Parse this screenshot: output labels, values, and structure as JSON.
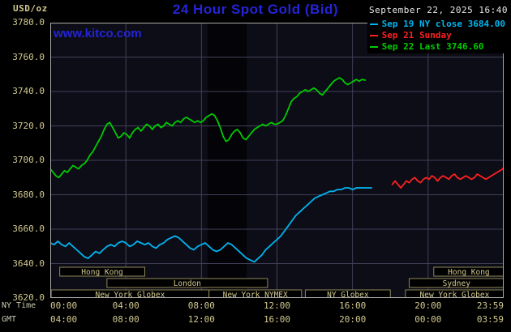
{
  "header": {
    "title": "24 Hour Spot Gold (Bid)",
    "datetime": "September 22, 2025 16:40",
    "unit_label": "USD/oz",
    "watermark": "www.kitco.com"
  },
  "legend": [
    {
      "label": "Sep 19 NY close 3684.00",
      "color": "#00b4f0"
    },
    {
      "label": "Sep 21 Sunday",
      "color": "#ff2020"
    },
    {
      "label": "Sep 22 Last 3746.60",
      "color": "#00cc00"
    }
  ],
  "colors": {
    "title_blue": "#2424d6",
    "axis_tan": "#d2c98f",
    "grid": "#404058",
    "plot_bg": "#0d0d17",
    "band": "#030308",
    "border": "#a8a8a8",
    "session_border": "#8f875a",
    "date_white": "#e6e6e6"
  },
  "axes": {
    "x_left_label": "NY Time",
    "x_left_label2": "GMT",
    "ny_ticks": [
      "00:00",
      "04:00",
      "08:00",
      "12:00",
      "16:00",
      "20:00",
      "23:59"
    ],
    "gmt_ticks": [
      "04:00",
      "08:00",
      "12:00",
      "16:00",
      "20:00",
      "00:00",
      "03:59"
    ],
    "tick_hours": [
      0,
      4,
      8,
      12,
      16,
      20,
      24
    ],
    "y_min": 3620,
    "y_max": 3780,
    "y_step": 20
  },
  "sessions": {
    "rows": [
      {
        "items": [
          {
            "label": "Hong Kong",
            "start": 0.5,
            "end": 5.0
          },
          {
            "label": "Hong Kong",
            "start": 20.3,
            "end": 24.0
          }
        ]
      },
      {
        "items": [
          {
            "label": "London",
            "start": 3.0,
            "end": 11.5
          },
          {
            "label": "Sydney",
            "start": 19.0,
            "end": 24.0
          }
        ]
      },
      {
        "items": [
          {
            "label": "New York Globex",
            "start": 0.05,
            "end": 8.4
          },
          {
            "label": "New York NYMEX",
            "start": 8.4,
            "end": 13.3
          },
          {
            "label": "NY Globex",
            "start": 13.5,
            "end": 18.0
          },
          {
            "label": "New York Globex",
            "start": 18.8,
            "end": 24.0
          }
        ]
      }
    ]
  },
  "chart_data": {
    "type": "line",
    "title": "24 Hour Spot Gold (Bid)",
    "xlabel": "NY Time",
    "ylabel": "USD/oz",
    "ylim": [
      3620,
      3780
    ],
    "xlim_hours": [
      0,
      24
    ],
    "band_hours": [
      8.33,
      10.4
    ],
    "series": [
      {
        "name": "Sep 19 NY close 3684.00",
        "color": "#00b4f0",
        "points": [
          [
            0.0,
            3652
          ],
          [
            0.2,
            3651
          ],
          [
            0.4,
            3653
          ],
          [
            0.6,
            3651
          ],
          [
            0.8,
            3650
          ],
          [
            1.0,
            3652
          ],
          [
            1.2,
            3650
          ],
          [
            1.4,
            3648
          ],
          [
            1.6,
            3646
          ],
          [
            1.8,
            3644
          ],
          [
            2.0,
            3643
          ],
          [
            2.2,
            3645
          ],
          [
            2.4,
            3647
          ],
          [
            2.6,
            3646
          ],
          [
            2.8,
            3648
          ],
          [
            3.0,
            3650
          ],
          [
            3.2,
            3651
          ],
          [
            3.4,
            3650
          ],
          [
            3.6,
            3652
          ],
          [
            3.8,
            3653
          ],
          [
            4.0,
            3652
          ],
          [
            4.2,
            3650
          ],
          [
            4.4,
            3651
          ],
          [
            4.6,
            3653
          ],
          [
            4.8,
            3652
          ],
          [
            5.0,
            3651
          ],
          [
            5.2,
            3652
          ],
          [
            5.4,
            3650
          ],
          [
            5.6,
            3649
          ],
          [
            5.8,
            3651
          ],
          [
            6.0,
            3652
          ],
          [
            6.2,
            3654
          ],
          [
            6.4,
            3655
          ],
          [
            6.6,
            3656
          ],
          [
            6.8,
            3655
          ],
          [
            7.0,
            3653
          ],
          [
            7.2,
            3651
          ],
          [
            7.4,
            3649
          ],
          [
            7.6,
            3648
          ],
          [
            7.8,
            3650
          ],
          [
            8.0,
            3651
          ],
          [
            8.2,
            3652
          ],
          [
            8.4,
            3650
          ],
          [
            8.6,
            3648
          ],
          [
            8.8,
            3647
          ],
          [
            9.0,
            3648
          ],
          [
            9.2,
            3650
          ],
          [
            9.4,
            3652
          ],
          [
            9.6,
            3651
          ],
          [
            9.8,
            3649
          ],
          [
            10.0,
            3647
          ],
          [
            10.2,
            3645
          ],
          [
            10.4,
            3643
          ],
          [
            10.6,
            3642
          ],
          [
            10.8,
            3641
          ],
          [
            11.0,
            3643
          ],
          [
            11.2,
            3645
          ],
          [
            11.4,
            3648
          ],
          [
            11.6,
            3650
          ],
          [
            11.8,
            3652
          ],
          [
            12.0,
            3654
          ],
          [
            12.2,
            3656
          ],
          [
            12.4,
            3659
          ],
          [
            12.6,
            3662
          ],
          [
            12.8,
            3665
          ],
          [
            13.0,
            3668
          ],
          [
            13.2,
            3670
          ],
          [
            13.4,
            3672
          ],
          [
            13.6,
            3674
          ],
          [
            13.8,
            3676
          ],
          [
            14.0,
            3678
          ],
          [
            14.2,
            3679
          ],
          [
            14.4,
            3680
          ],
          [
            14.6,
            3681
          ],
          [
            14.8,
            3682
          ],
          [
            15.0,
            3682
          ],
          [
            15.2,
            3683
          ],
          [
            15.4,
            3683
          ],
          [
            15.6,
            3684
          ],
          [
            15.8,
            3684
          ],
          [
            16.0,
            3683
          ],
          [
            16.2,
            3684
          ],
          [
            16.4,
            3684
          ],
          [
            16.6,
            3684
          ],
          [
            16.8,
            3684
          ],
          [
            17.0,
            3684
          ]
        ]
      },
      {
        "name": "Sep 21 Sunday",
        "color": "#ff2020",
        "points": [
          [
            18.1,
            3686
          ],
          [
            18.25,
            3688
          ],
          [
            18.4,
            3686
          ],
          [
            18.55,
            3684
          ],
          [
            18.7,
            3686
          ],
          [
            18.85,
            3688
          ],
          [
            19.0,
            3687
          ],
          [
            19.15,
            3689
          ],
          [
            19.3,
            3690
          ],
          [
            19.45,
            3688
          ],
          [
            19.6,
            3687
          ],
          [
            19.75,
            3689
          ],
          [
            19.9,
            3690
          ],
          [
            20.05,
            3689
          ],
          [
            20.2,
            3691
          ],
          [
            20.35,
            3690
          ],
          [
            20.5,
            3688
          ],
          [
            20.65,
            3690
          ],
          [
            20.8,
            3691
          ],
          [
            20.95,
            3690
          ],
          [
            21.1,
            3689
          ],
          [
            21.25,
            3691
          ],
          [
            21.4,
            3692
          ],
          [
            21.55,
            3690
          ],
          [
            21.7,
            3689
          ],
          [
            21.85,
            3690
          ],
          [
            22.0,
            3691
          ],
          [
            22.15,
            3690
          ],
          [
            22.3,
            3689
          ],
          [
            22.45,
            3690
          ],
          [
            22.6,
            3692
          ],
          [
            22.75,
            3691
          ],
          [
            22.9,
            3690
          ],
          [
            23.05,
            3689
          ],
          [
            23.2,
            3690
          ],
          [
            23.35,
            3691
          ],
          [
            23.5,
            3692
          ],
          [
            23.65,
            3693
          ],
          [
            23.8,
            3694
          ],
          [
            23.95,
            3695
          ],
          [
            24.0,
            3696
          ]
        ]
      },
      {
        "name": "Sep 22 Last 3746.60",
        "color": "#00cc00",
        "points": [
          [
            0.0,
            3695
          ],
          [
            0.15,
            3693
          ],
          [
            0.3,
            3691
          ],
          [
            0.45,
            3690
          ],
          [
            0.6,
            3692
          ],
          [
            0.75,
            3694
          ],
          [
            0.9,
            3693
          ],
          [
            1.05,
            3695
          ],
          [
            1.2,
            3697
          ],
          [
            1.35,
            3696
          ],
          [
            1.5,
            3695
          ],
          [
            1.65,
            3697
          ],
          [
            1.8,
            3698
          ],
          [
            1.95,
            3700
          ],
          [
            2.1,
            3703
          ],
          [
            2.25,
            3705
          ],
          [
            2.4,
            3708
          ],
          [
            2.55,
            3711
          ],
          [
            2.7,
            3714
          ],
          [
            2.85,
            3718
          ],
          [
            3.0,
            3721
          ],
          [
            3.15,
            3722
          ],
          [
            3.3,
            3719
          ],
          [
            3.45,
            3716
          ],
          [
            3.6,
            3713
          ],
          [
            3.75,
            3714
          ],
          [
            3.9,
            3716
          ],
          [
            4.05,
            3715
          ],
          [
            4.2,
            3713
          ],
          [
            4.35,
            3716
          ],
          [
            4.5,
            3718
          ],
          [
            4.65,
            3719
          ],
          [
            4.8,
            3717
          ],
          [
            4.95,
            3719
          ],
          [
            5.1,
            3721
          ],
          [
            5.25,
            3720
          ],
          [
            5.4,
            3718
          ],
          [
            5.55,
            3720
          ],
          [
            5.7,
            3721
          ],
          [
            5.85,
            3719
          ],
          [
            6.0,
            3720
          ],
          [
            6.15,
            3722
          ],
          [
            6.3,
            3721
          ],
          [
            6.45,
            3720
          ],
          [
            6.6,
            3722
          ],
          [
            6.75,
            3723
          ],
          [
            6.9,
            3722
          ],
          [
            7.05,
            3724
          ],
          [
            7.2,
            3725
          ],
          [
            7.35,
            3724
          ],
          [
            7.5,
            3723
          ],
          [
            7.65,
            3722
          ],
          [
            7.8,
            3723
          ],
          [
            7.95,
            3722
          ],
          [
            8.1,
            3723
          ],
          [
            8.25,
            3725
          ],
          [
            8.4,
            3726
          ],
          [
            8.55,
            3727
          ],
          [
            8.7,
            3726
          ],
          [
            8.85,
            3723
          ],
          [
            9.0,
            3719
          ],
          [
            9.15,
            3714
          ],
          [
            9.3,
            3711
          ],
          [
            9.45,
            3712
          ],
          [
            9.6,
            3715
          ],
          [
            9.75,
            3717
          ],
          [
            9.9,
            3718
          ],
          [
            10.05,
            3716
          ],
          [
            10.2,
            3713
          ],
          [
            10.35,
            3712
          ],
          [
            10.5,
            3714
          ],
          [
            10.65,
            3716
          ],
          [
            10.8,
            3718
          ],
          [
            10.95,
            3719
          ],
          [
            11.1,
            3720
          ],
          [
            11.25,
            3721
          ],
          [
            11.4,
            3720
          ],
          [
            11.55,
            3721
          ],
          [
            11.7,
            3722
          ],
          [
            11.85,
            3721
          ],
          [
            12.0,
            3721
          ],
          [
            12.15,
            3722
          ],
          [
            12.3,
            3723
          ],
          [
            12.45,
            3726
          ],
          [
            12.6,
            3730
          ],
          [
            12.75,
            3734
          ],
          [
            12.9,
            3736
          ],
          [
            13.05,
            3737
          ],
          [
            13.2,
            3739
          ],
          [
            13.35,
            3740
          ],
          [
            13.5,
            3741
          ],
          [
            13.65,
            3740
          ],
          [
            13.8,
            3741
          ],
          [
            13.95,
            3742
          ],
          [
            14.1,
            3741
          ],
          [
            14.25,
            3739
          ],
          [
            14.4,
            3738
          ],
          [
            14.55,
            3740
          ],
          [
            14.7,
            3742
          ],
          [
            14.85,
            3744
          ],
          [
            15.0,
            3746
          ],
          [
            15.15,
            3747
          ],
          [
            15.3,
            3748
          ],
          [
            15.45,
            3747
          ],
          [
            15.6,
            3745
          ],
          [
            15.75,
            3744
          ],
          [
            15.9,
            3745
          ],
          [
            16.05,
            3746
          ],
          [
            16.2,
            3747
          ],
          [
            16.35,
            3746
          ],
          [
            16.5,
            3747
          ],
          [
            16.67,
            3746.6
          ]
        ]
      }
    ]
  }
}
